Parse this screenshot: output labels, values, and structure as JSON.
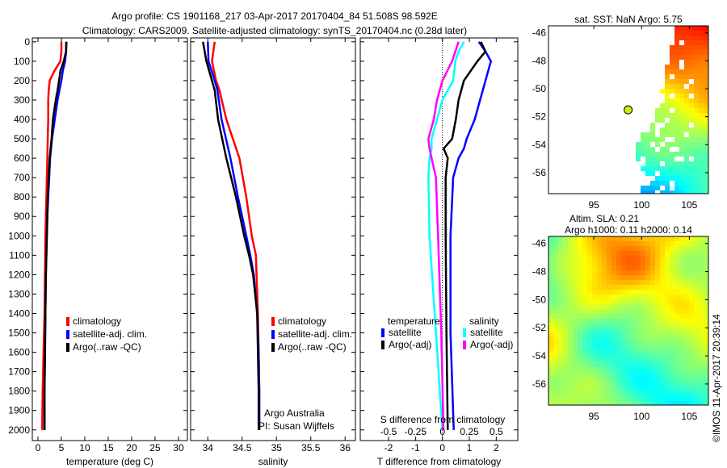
{
  "title": [
    "Argo profile: CS 1901168_217 03-Apr-2017 20170404_84 51.508S 98.592E",
    "Climatology: CARS2009. Satellite-adjusted climatology: synTS_20170404.nc (0.28d later)"
  ],
  "footer_stamp": "©IMOS 11-Apr-2017 20:39:14",
  "colors": {
    "climatology": "#ff0000",
    "satellite": "#0000ff",
    "argo": "#000000",
    "s_satellite": "#00ffff",
    "s_argo": "#ff00ff"
  },
  "chart_data": [
    {
      "type": "line",
      "name": "temperature",
      "xlabel": "temperature (deg C)",
      "ylabel": "",
      "xlim": [
        -1.2,
        31.9
      ],
      "ylim": [
        -20,
        2055
      ],
      "y_reversed": true,
      "xticks": [
        0,
        5,
        10,
        15,
        20,
        25,
        30
      ],
      "yticks": [
        0,
        100,
        200,
        300,
        400,
        500,
        600,
        700,
        800,
        900,
        1000,
        1100,
        1200,
        1300,
        1400,
        1500,
        1600,
        1700,
        1800,
        1900,
        2000
      ],
      "depth": [
        0,
        50,
        100,
        150,
        200,
        250,
        300,
        400,
        500,
        600,
        700,
        800,
        900,
        1000,
        1200,
        1400,
        1600,
        1800,
        2000
      ],
      "legend": [
        "climatology",
        "satellite-adj. clim.",
        "Argo(..raw -QC)"
      ],
      "series": [
        {
          "name": "climatology",
          "color": "#ff0000",
          "values": [
            5.0,
            5.0,
            4.8,
            3.5,
            2.5,
            2.3,
            2.2,
            2.2,
            2.1,
            2.0,
            1.9,
            1.8,
            1.7,
            1.6,
            1.5,
            1.4,
            1.2,
            1.0,
            0.9
          ]
        },
        {
          "name": "satellite-adj. clim.",
          "color": "#0000ff",
          "values": [
            6.0,
            6.0,
            5.8,
            5.3,
            5.0,
            4.6,
            4.2,
            3.6,
            3.0,
            2.6,
            2.4,
            2.2,
            2.0,
            1.9,
            1.7,
            1.6,
            1.5,
            1.4,
            1.4
          ]
        },
        {
          "name": "Argo(..raw -QC)",
          "color": "#000000",
          "values": [
            6.1,
            6.0,
            5.5,
            4.8,
            4.5,
            4.2,
            3.8,
            3.2,
            2.9,
            2.5,
            2.3,
            2.1,
            2.0,
            1.9,
            1.7,
            1.6,
            1.5,
            1.4,
            1.4
          ]
        }
      ]
    },
    {
      "type": "line",
      "name": "salinity",
      "xlabel": "salinity",
      "xlim": [
        33.75,
        36.15
      ],
      "ylim": [
        -20,
        2055
      ],
      "y_reversed": true,
      "xticks": [
        34,
        34.5,
        35,
        35.5,
        36
      ],
      "depth": [
        0,
        100,
        200,
        250,
        400,
        600,
        800,
        1000,
        1100,
        1200,
        1400,
        1600,
        1800,
        2000
      ],
      "legend": [
        "climatology",
        "satellite-adj. clim.",
        "Argo(..raw -QC)"
      ],
      "annotations": [
        "Argo Australia",
        "PI: Susan Wijffels"
      ],
      "series": [
        {
          "name": "climatology",
          "color": "#ff0000",
          "values": [
            34.1,
            34.06,
            34.12,
            34.17,
            34.27,
            34.46,
            34.56,
            34.64,
            34.7,
            34.71,
            34.73,
            34.74,
            34.75,
            34.75
          ]
        },
        {
          "name": "satellite-adj. clim.",
          "color": "#0000ff",
          "values": [
            34.0,
            34.01,
            34.1,
            34.14,
            34.2,
            34.33,
            34.44,
            34.56,
            34.62,
            34.67,
            34.72,
            34.74,
            34.75,
            34.75
          ]
        },
        {
          "name": "Argo(..raw -QC)",
          "color": "#000000",
          "values": [
            33.93,
            33.98,
            34.06,
            34.1,
            34.15,
            34.27,
            34.41,
            34.53,
            34.6,
            34.66,
            34.72,
            34.73,
            34.74,
            34.74
          ]
        }
      ]
    },
    {
      "type": "line",
      "name": "difference",
      "xlabel": "T difference from climatology",
      "x2label": "S difference from climatology",
      "xlim": [
        -3.05,
        2.8
      ],
      "ylim": [
        -20,
        2055
      ],
      "y_reversed": true,
      "xticks": [
        -2,
        -1,
        0,
        1,
        2
      ],
      "x2ticks": [
        -0.5,
        -0.25,
        0,
        0.25,
        0.5
      ],
      "x2_scale": 0.25,
      "depth": [
        0,
        50,
        100,
        200,
        300,
        400,
        500,
        550,
        600,
        700,
        1000,
        1500,
        2000
      ],
      "legend_t_title": "temperature",
      "legend_s_title": "salinity",
      "legend_t": [
        "satellite",
        "Argo(-adj)"
      ],
      "legend_s": [
        "satellite",
        "Argo(-adj)"
      ],
      "series": [
        {
          "name": "T satellite",
          "axis": "T",
          "color": "#0000ff",
          "values": [
            1.35,
            1.6,
            1.8,
            1.6,
            1.4,
            1.2,
            0.9,
            0.8,
            0.6,
            0.4,
            0.3,
            0.3,
            0.42
          ]
        },
        {
          "name": "T Argo(-adj)",
          "axis": "T",
          "color": "#000000",
          "values": [
            1.43,
            1.6,
            1.3,
            0.8,
            0.6,
            0.5,
            0.36,
            0.05,
            0.2,
            0.12,
            0.12,
            0.15,
            0.2
          ]
        },
        {
          "name": "S satellite",
          "axis": "S",
          "color": "#00ffff",
          "values": [
            0.2,
            0.15,
            0.12,
            0.1,
            0.0,
            -0.05,
            -0.1,
            -0.1,
            -0.12,
            -0.13,
            -0.12,
            -0.06,
            0.0
          ]
        },
        {
          "name": "S Argo(-adj)",
          "axis": "S",
          "color": "#ff00ff",
          "values": [
            0.15,
            0.12,
            0.09,
            0.0,
            -0.05,
            -0.08,
            -0.13,
            -0.12,
            -0.1,
            -0.06,
            -0.04,
            -0.01,
            0.01
          ]
        }
      ]
    },
    {
      "type": "heatmap",
      "name": "sst_map",
      "title": "sat. SST: NaN Argo: 5.75",
      "xlim": [
        90.25,
        107
      ],
      "ylim": [
        -57.5,
        -45.5
      ],
      "xticks": [
        95,
        100,
        105
      ],
      "yticks": [
        -46,
        -48,
        -50,
        -52,
        -54,
        -56
      ],
      "argo_position": [
        98.592,
        -51.508
      ]
    },
    {
      "type": "heatmap",
      "name": "sla_map",
      "title": [
        "Altim. SLA: 0.21",
        "Argo h1000: 0.11 h2000: 0.14"
      ],
      "xlim": [
        90.25,
        107
      ],
      "ylim": [
        -57.5,
        -45.5
      ],
      "xticks": [
        95,
        100,
        105
      ],
      "yticks": [
        -46,
        -48,
        -50,
        -52,
        -54,
        -56
      ]
    }
  ]
}
